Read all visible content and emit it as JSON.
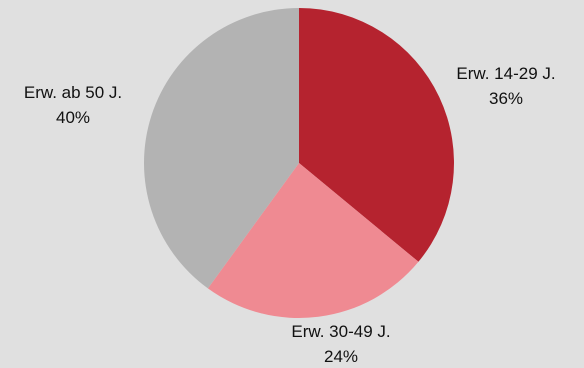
{
  "chart_data": {
    "type": "pie",
    "title": "",
    "slices": [
      {
        "label": "Erw. 14-29 J.",
        "value": 36,
        "value_label": "36%",
        "color": "#b5232f"
      },
      {
        "label": "Erw. 30-49 J.",
        "value": 24,
        "value_label": "24%",
        "color": "#ef8a92"
      },
      {
        "label": "Erw. ab 50 J.",
        "value": 40,
        "value_label": "40%",
        "color": "#b3b3b3"
      }
    ],
    "start_angle": "12 o'clock",
    "direction": "clockwise",
    "legend": "none",
    "background": "#e0e0e0"
  }
}
